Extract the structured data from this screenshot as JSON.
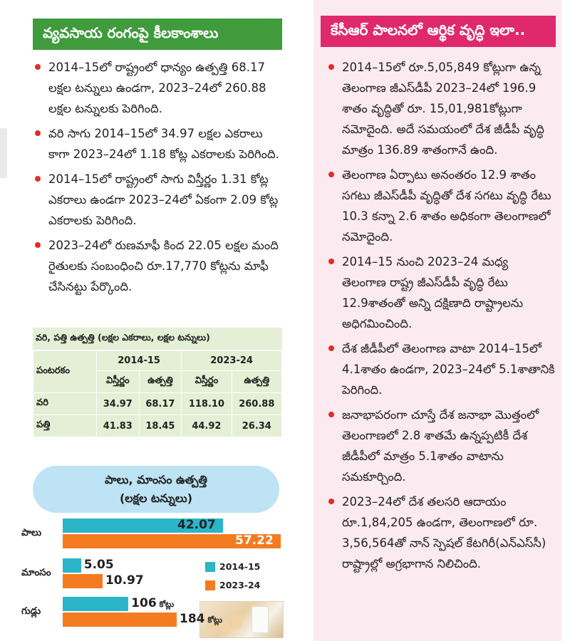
{
  "left_panel": {
    "header": "వ్యవసాయ రంగంపై కీలకాంశాలు",
    "bullets": [
      "2014–15లో రాష్ట్రంలో ధాన్యం ఉత్పత్తి 68.17 లక్షల టన్నులు ఉండగా, 2023–24లో 260.88 లక్షల టన్నులకు పెరిగింది.",
      "వరి సాగు 2014–15లో 34.97 లక్షల ఎకరాలు కాగా 2023–24లో 1.18 కోట్ల ఎకరాలకు పెరిగింది.",
      "2014–15లో రాష్ట్రంలో సాగు విస్తీర్ణం 1.31 కోట్ల ఎకరాలు ఉండగా 2023–24లో ఏకంగా 2.09 కోట్ల ఎకరాలకు పెరిగింది.",
      "2023–24లో రుణమాఫీ కింద 22.05 లక్షల మంది రైతులకు సంబంధించి రూ.17,770 కోట్లను మాఫీ చేసినట్టు పేర్కొంది."
    ],
    "table": {
      "title": "వరి, పత్తి ఉత్పత్తి (లక్షల ఎకరాలు, లక్షల టన్నులు)",
      "crop_header": "పంటరకం",
      "years": [
        "2014-15",
        "2023-24"
      ],
      "subheaders": [
        "విస్తీర్ణం",
        "ఉత్పత్తి",
        "విస్తీర్ణం",
        "ఉత్పత్తి"
      ],
      "rows": [
        {
          "crop": "వరి",
          "values": [
            "34.97",
            "68.17",
            "118.10",
            "260.88"
          ]
        },
        {
          "crop": "పత్తి",
          "values": [
            "41.83",
            "18.45",
            "44.92",
            "26.34"
          ]
        }
      ]
    }
  },
  "chart_data": {
    "type": "bar",
    "title": "పాలు, మాంసం ఉత్పత్తి",
    "subtitle": "(లక్షల టన్నులు)",
    "categories": [
      "పాలు",
      "మాంసం",
      "గుడ్లు"
    ],
    "series": [
      {
        "name": "2014-15",
        "color": "#2bb5c8",
        "values": [
          42.07,
          5.05,
          106
        ],
        "labels": [
          "42.07",
          "5.05",
          "106"
        ]
      },
      {
        "name": "2023-24",
        "color": "#f47b20",
        "values": [
          57.22,
          10.97,
          184
        ],
        "labels": [
          "57.22",
          "10.97",
          "184"
        ]
      }
    ],
    "egg_unit": "కోట్లు",
    "legend_position": "right"
  },
  "right_panel": {
    "header": "కేసీఆర్ పాలనలో ఆర్థిక వృద్ధి ఇలా..",
    "bullets": [
      "2014–15లో రూ.5,05,849 కోట్లుగా ఉన్న తెలంగాణ జీఎస్‌డీపీ 2023–24లో 196.9 శాతం వృద్ధితో రూ. 15,01,981కోట్లుగా నమోదైంది. అదే సమయంలో దేశ జీడీపీ వృద్ధి మాత్రం 136.89 శాతంగానే ఉంది.",
      "తెలంగాణ ఏర్పాటు అనంతరం 12.9 శాతం సగటు జీఎస్‌డీపీ వృద్ధితో దేశ సగటు వృద్ధి రేటు 10.3 కన్నా 2.6 శాతం అధికంగా తెలంగాణలో నమోదైంది.",
      "2014–15 నుంచి 2023–24 మధ్య తెలంగాణ రాష్ట్ర జీఎస్‌డీపీ వృద్ధి రేటు 12.9శాతంతో అన్ని దక్షిణాది రాష్ట్రాలను అధిగమించింది.",
      "దేశ జీడీపీలో తెలంగాణ వాటా 2014–15లో 4.1శాతం ఉండగా, 2023–24లో 5.1శాతానికి పెరిగింది.",
      "జనాభాపరంగా చూస్తే దేశ జనాభా మొత్తంలో తెలంగాణలో 2.8 శాతమే ఉన్నప్పటికీ దేశ జీడీపీలో మాత్రం 5.1శాతం వాటాను సమకూర్చింది.",
      "2023–24లో దేశ తలసరి ఆదాయం రూ.1,84,205 ఉండగా, తెలంగాణలో రూ. 3,56,564తో నాన్ స్పెషల్ కేటగిరీ(ఎన్‌ఎస్‌సీ) రాష్ట్రాల్లో అగ్రభాగాన నిలిచింది."
    ]
  }
}
